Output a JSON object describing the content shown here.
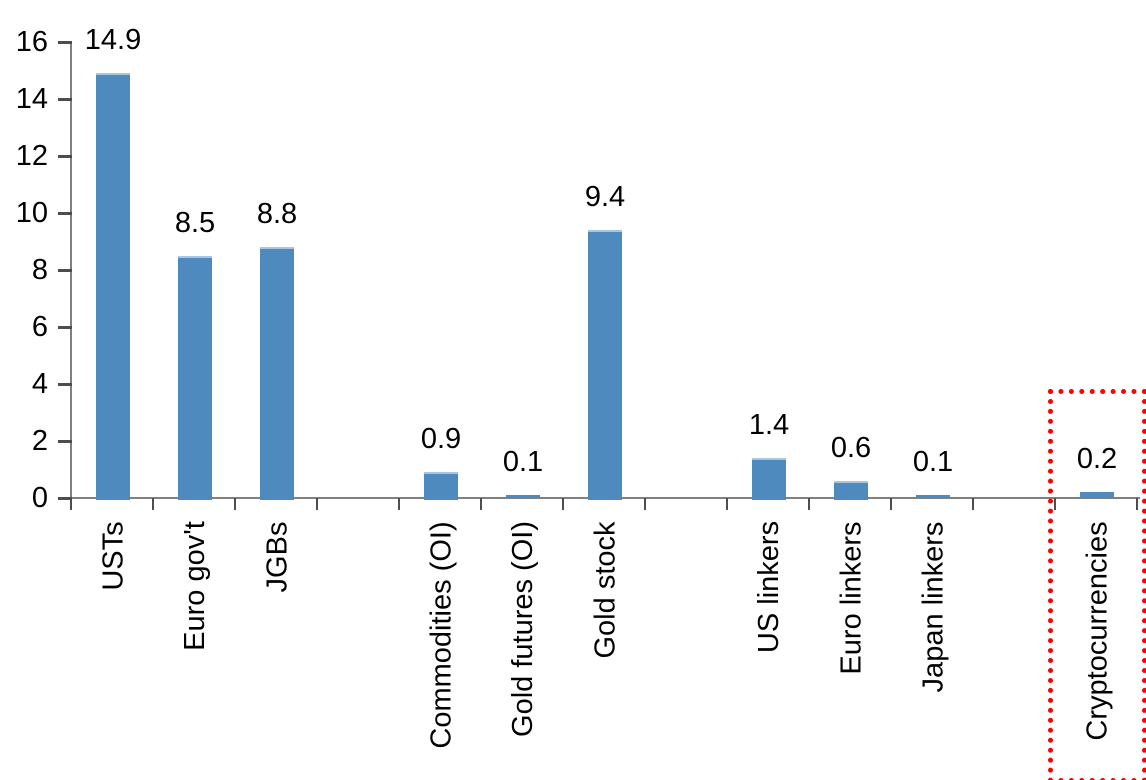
{
  "chart_data": {
    "type": "bar",
    "title": "",
    "xlabel": "",
    "ylabel": "",
    "categories": [
      "USTs",
      "Euro gov't",
      "JGBs",
      "",
      "Commodities (OI)",
      "Gold futures (OI)",
      "Gold stock",
      "",
      "US linkers",
      "Euro linkers",
      "Japan linkers",
      "",
      "Cryptocurrencies"
    ],
    "values": [
      14.9,
      8.5,
      8.8,
      null,
      0.9,
      0.1,
      9.4,
      null,
      1.4,
      0.6,
      0.1,
      null,
      0.2
    ],
    "value_labels": [
      "14.9",
      "8.5",
      "8.8",
      "",
      "0.9",
      "0.1",
      "9.4",
      "",
      "1.4",
      "0.6",
      "0.1",
      "",
      "0.2"
    ],
    "yticks": [
      "16",
      "14",
      "12",
      "10",
      "8",
      "6",
      "4",
      "2",
      "0"
    ],
    "ytick_values": [
      16,
      14,
      12,
      10,
      8,
      6,
      4,
      2,
      0
    ],
    "ylim": [
      0,
      16
    ],
    "grid": "off",
    "legend": "none",
    "category_label_rotation_deg": -90,
    "bar_color": "#4E8ABE",
    "bar_top_highlight_color": "#A9C5E0",
    "axis_line_color": "#808080",
    "tick_mark_color": "#4d4d4d",
    "text_color": "#000000",
    "annotation": {
      "type": "dotted-box",
      "color": "#FF0000",
      "target_category": "Cryptocurrencies",
      "target_index": 12
    }
  }
}
